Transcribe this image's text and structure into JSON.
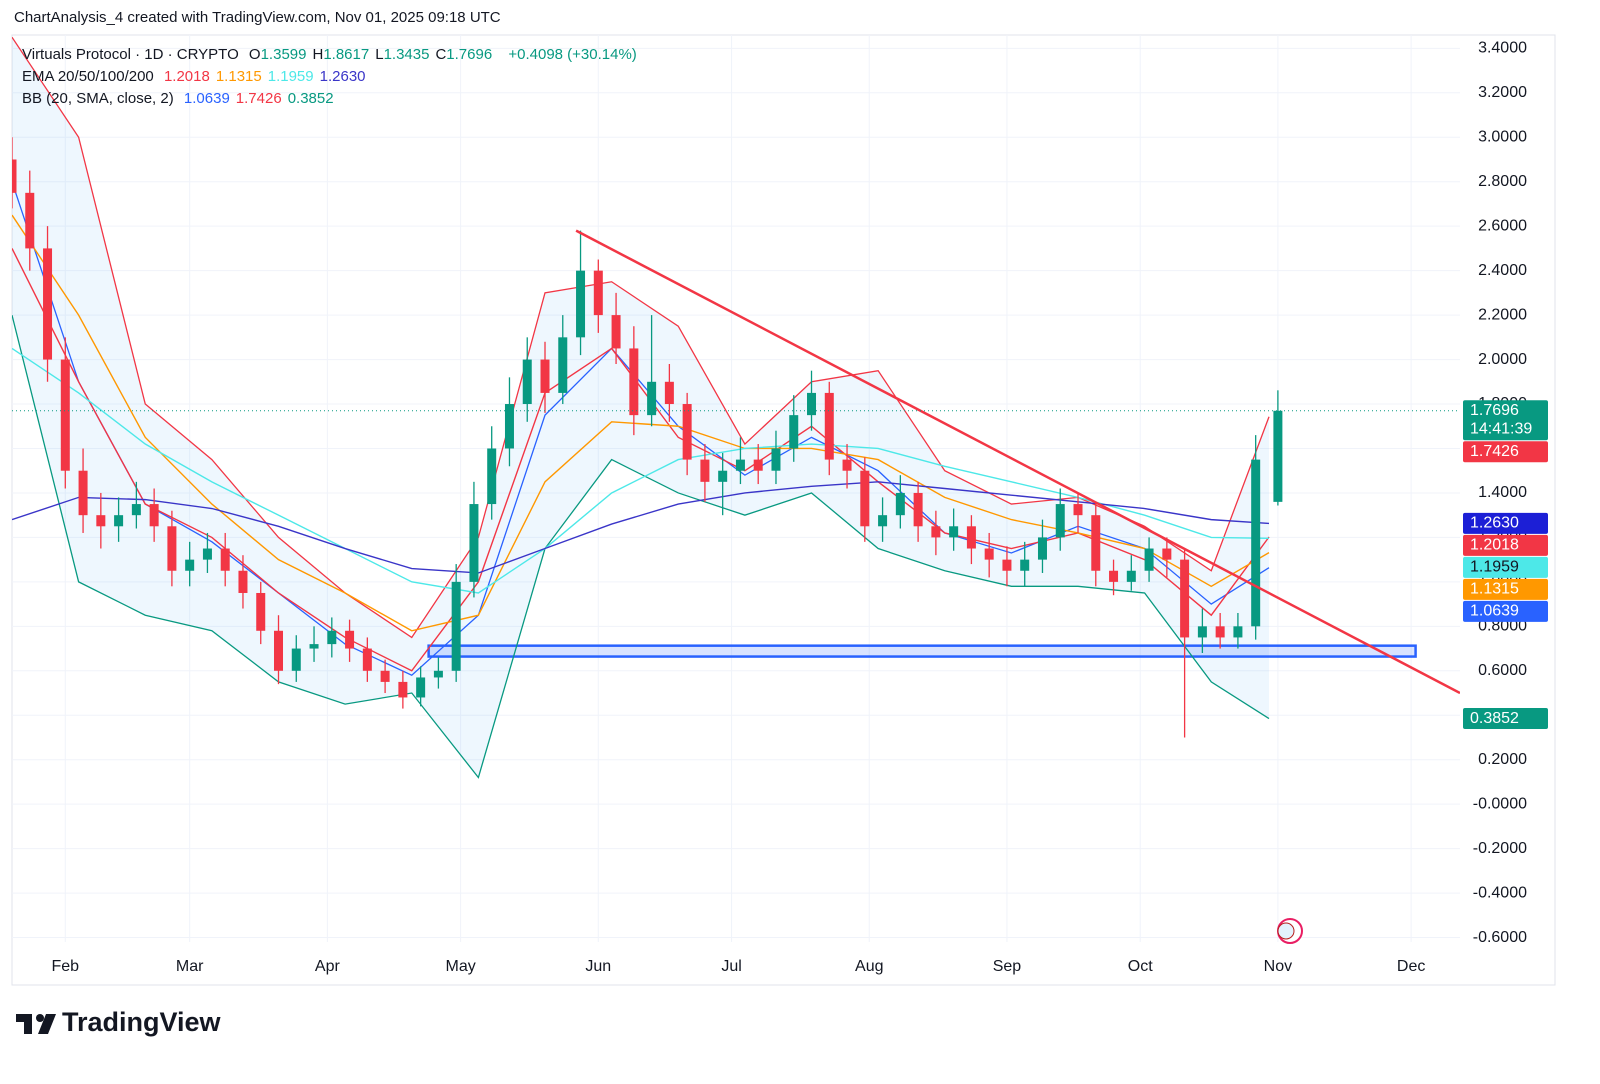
{
  "header": {
    "caption": "ChartAnalysis_4 created with TradingView.com, Nov 01, 2025 09:18 UTC"
  },
  "legend": {
    "symbol": "Virtuals Protocol · 1D · CRYPTO",
    "ohlc_keys": [
      "O",
      "H",
      "L",
      "C"
    ],
    "change": "+0.4098 (+30.14%)",
    "ema_label": "EMA 20/50/100/200",
    "bb_label": "BB (20, SMA, close, 2)"
  },
  "brand": "TradingView",
  "chart_data": {
    "type": "candlestick",
    "x": [
      19,
      23,
      27,
      31,
      35,
      39,
      43,
      47,
      51,
      55,
      59,
      63,
      67,
      71,
      75,
      79,
      83,
      87,
      91,
      95,
      99,
      103,
      107,
      111,
      115,
      119,
      123,
      127,
      131,
      135,
      139,
      143,
      147,
      151,
      155,
      159,
      163,
      167,
      171,
      175,
      179,
      183,
      187,
      191,
      195,
      199,
      203,
      207,
      211,
      215,
      219,
      223,
      227,
      231,
      235,
      239,
      243,
      247,
      251,
      255,
      259,
      263,
      267,
      271,
      275,
      279,
      283,
      287,
      291,
      295,
      299,
      304
    ],
    "open": [
      2.9,
      2.75,
      2.5,
      2.0,
      1.5,
      1.3,
      1.25,
      1.3,
      1.35,
      1.25,
      1.05,
      1.1,
      1.15,
      1.05,
      0.95,
      0.78,
      0.6,
      0.7,
      0.72,
      0.78,
      0.7,
      0.6,
      0.55,
      0.48,
      0.57,
      0.6,
      1.0,
      1.35,
      1.6,
      1.8,
      2.0,
      1.85,
      2.1,
      2.4,
      2.2,
      2.05,
      1.75,
      1.9,
      1.8,
      1.55,
      1.45,
      1.5,
      1.55,
      1.5,
      1.6,
      1.75,
      1.85,
      1.55,
      1.5,
      1.25,
      1.3,
      1.4,
      1.25,
      1.2,
      1.25,
      1.15,
      1.1,
      1.05,
      1.1,
      1.2,
      1.35,
      1.3,
      1.05,
      1.0,
      1.05,
      1.15,
      1.1,
      0.75,
      0.8,
      0.75,
      0.8,
      1.3599
    ],
    "high": [
      3.0,
      2.85,
      2.6,
      2.1,
      1.6,
      1.4,
      1.38,
      1.45,
      1.42,
      1.32,
      1.18,
      1.22,
      1.22,
      1.12,
      1.0,
      0.85,
      0.76,
      0.8,
      0.84,
      0.83,
      0.75,
      0.65,
      0.6,
      0.62,
      0.66,
      1.08,
      1.45,
      1.7,
      1.92,
      2.1,
      2.08,
      2.2,
      2.58,
      2.45,
      2.3,
      2.15,
      2.2,
      1.98,
      1.85,
      1.62,
      1.58,
      1.65,
      1.62,
      1.68,
      1.84,
      1.95,
      1.9,
      1.62,
      1.56,
      1.38,
      1.48,
      1.45,
      1.32,
      1.33,
      1.3,
      1.22,
      1.16,
      1.18,
      1.28,
      1.42,
      1.4,
      1.36,
      1.1,
      1.12,
      1.2,
      1.2,
      1.15,
      0.88,
      0.86,
      0.86,
      1.66,
      1.8617
    ],
    "low": [
      2.68,
      2.4,
      1.9,
      1.42,
      1.22,
      1.15,
      1.18,
      1.24,
      1.18,
      0.98,
      0.98,
      1.04,
      0.98,
      0.88,
      0.72,
      0.54,
      0.55,
      0.64,
      0.66,
      0.64,
      0.55,
      0.5,
      0.43,
      0.44,
      0.52,
      0.55,
      0.93,
      1.28,
      1.52,
      1.72,
      1.76,
      1.8,
      2.02,
      2.12,
      1.98,
      1.66,
      1.7,
      1.72,
      1.48,
      1.36,
      1.3,
      1.44,
      1.44,
      1.44,
      1.54,
      1.68,
      1.48,
      1.42,
      1.18,
      1.18,
      1.24,
      1.18,
      1.12,
      1.14,
      1.08,
      1.02,
      0.98,
      0.98,
      1.04,
      1.14,
      1.22,
      0.98,
      0.94,
      0.96,
      1.0,
      1.02,
      0.3,
      0.68,
      0.7,
      0.7,
      0.74,
      1.3435
    ],
    "close": [
      2.75,
      2.5,
      2.0,
      1.5,
      1.3,
      1.25,
      1.3,
      1.35,
      1.25,
      1.05,
      1.1,
      1.15,
      1.05,
      0.95,
      0.78,
      0.6,
      0.7,
      0.72,
      0.78,
      0.7,
      0.6,
      0.55,
      0.48,
      0.57,
      0.6,
      1.0,
      1.35,
      1.6,
      1.8,
      2.0,
      1.85,
      2.1,
      2.4,
      2.2,
      2.05,
      1.75,
      1.9,
      1.8,
      1.55,
      1.45,
      1.5,
      1.55,
      1.5,
      1.6,
      1.75,
      1.85,
      1.55,
      1.5,
      1.25,
      1.3,
      1.4,
      1.25,
      1.2,
      1.25,
      1.15,
      1.1,
      1.05,
      1.1,
      1.2,
      1.35,
      1.3,
      1.05,
      1.0,
      1.05,
      1.15,
      1.1,
      0.75,
      0.8,
      0.75,
      0.8,
      1.55,
      1.7696
    ],
    "up_color": "#089981",
    "down_color": "#f23645",
    "countdown": "14:41:39",
    "line_x": [
      19,
      34,
      49,
      64,
      79,
      94,
      109,
      124,
      139,
      154,
      169,
      184,
      199,
      214,
      229,
      244,
      259,
      274,
      289,
      302
    ],
    "ema": [
      {
        "color": "#f23645",
        "values": [
          2.5,
          1.9,
          1.35,
          1.2,
          0.95,
          0.75,
          0.6,
          1.0,
          1.85,
          2.05,
          1.65,
          1.5,
          1.7,
          1.45,
          1.22,
          1.15,
          1.22,
          1.1,
          0.85,
          1.2018
        ]
      },
      {
        "color": "#ff9800",
        "values": [
          2.65,
          2.2,
          1.65,
          1.35,
          1.1,
          0.95,
          0.78,
          0.85,
          1.45,
          1.72,
          1.7,
          1.6,
          1.6,
          1.55,
          1.38,
          1.28,
          1.22,
          1.15,
          0.98,
          1.1315
        ]
      },
      {
        "color": "#4de8e8",
        "values": [
          2.05,
          1.85,
          1.62,
          1.45,
          1.3,
          1.15,
          1.0,
          0.95,
          1.15,
          1.4,
          1.55,
          1.6,
          1.62,
          1.6,
          1.52,
          1.45,
          1.38,
          1.3,
          1.2,
          1.1959
        ]
      },
      {
        "color": "#3a35c8",
        "values": [
          1.28,
          1.38,
          1.37,
          1.33,
          1.25,
          1.15,
          1.06,
          1.04,
          1.15,
          1.26,
          1.35,
          1.4,
          1.43,
          1.45,
          1.42,
          1.39,
          1.36,
          1.33,
          1.28,
          1.263
        ]
      }
    ],
    "bollinger": {
      "fill": "rgba(33,150,243,0.08)",
      "basis": {
        "color": "#2962ff",
        "values": [
          2.8,
          1.9,
          1.35,
          1.18,
          0.95,
          0.72,
          0.58,
          0.85,
          1.75,
          2.05,
          1.7,
          1.48,
          1.65,
          1.5,
          1.22,
          1.13,
          1.25,
          1.15,
          0.9,
          1.0639
        ]
      },
      "upper": {
        "color": "#f23645",
        "values": [
          3.45,
          3.0,
          1.8,
          1.55,
          1.2,
          0.95,
          0.75,
          1.2,
          2.3,
          2.35,
          2.15,
          1.62,
          1.9,
          1.95,
          1.5,
          1.35,
          1.38,
          1.25,
          1.05,
          1.7426
        ]
      },
      "lower": {
        "color": "#089981",
        "values": [
          2.2,
          1.0,
          0.85,
          0.78,
          0.55,
          0.45,
          0.5,
          0.12,
          1.15,
          1.55,
          1.4,
          1.3,
          1.4,
          1.15,
          1.05,
          0.98,
          0.98,
          0.95,
          0.55,
          0.3852
        ]
      }
    },
    "trendline": {
      "color": "#f23645",
      "x": [
        146,
        345
      ],
      "y": [
        2.58,
        0.5
      ]
    },
    "zone": {
      "color": "#2962ff",
      "x": [
        112.8,
        335
      ],
      "y": [
        0.664,
        0.713
      ]
    },
    "price_labels": [
      {
        "value": 1.7426,
        "label": "1.7426",
        "color": "#f23645",
        "text_color": "#ffffff"
      },
      {
        "value": 1.263,
        "label": "1.2630",
        "color": "#1c1fd6",
        "text_color": "#ffffff"
      },
      {
        "value": 1.2018,
        "label": "1.2018",
        "color": "#f23645",
        "text_color": "#ffffff"
      },
      {
        "value": 1.1959,
        "label": "1.1959",
        "color": "#4de8e8",
        "text_color": "#131722"
      },
      {
        "value": 1.1315,
        "label": "1.1315",
        "color": "#ff9800",
        "text_color": "#ffffff"
      },
      {
        "value": 1.0639,
        "label": "1.0639",
        "color": "#2962ff",
        "text_color": "#ffffff"
      },
      {
        "value": 0.3852,
        "label": "0.3852",
        "color": "#089981",
        "text_color": "#ffffff"
      }
    ],
    "xlim": [
      19,
      345
    ],
    "xticks": [
      {
        "value": 31,
        "label": "Feb"
      },
      {
        "value": 59,
        "label": "Mar"
      },
      {
        "value": 90,
        "label": "Apr"
      },
      {
        "value": 120,
        "label": "May"
      },
      {
        "value": 151,
        "label": "Jun"
      },
      {
        "value": 181,
        "label": "Jul"
      },
      {
        "value": 212,
        "label": "Aug"
      },
      {
        "value": 243,
        "label": "Sep"
      },
      {
        "value": 273,
        "label": "Oct"
      },
      {
        "value": 304,
        "label": "Nov"
      },
      {
        "value": 334,
        "label": "Dec"
      }
    ],
    "ylim": [
      -0.62,
      3.46
    ],
    "yticks": [
      {
        "value": 3.4,
        "label": "3.4000"
      },
      {
        "value": 3.2,
        "label": "3.2000"
      },
      {
        "value": 3.0,
        "label": "3.0000"
      },
      {
        "value": 2.8,
        "label": "2.8000"
      },
      {
        "value": 2.6,
        "label": "2.6000"
      },
      {
        "value": 2.4,
        "label": "2.4000"
      },
      {
        "value": 2.2,
        "label": "2.2000"
      },
      {
        "value": 2.0,
        "label": "2.0000"
      },
      {
        "value": 1.8,
        "label": "1.8000"
      },
      {
        "value": 1.6,
        "label": "1.6000"
      },
      {
        "value": 1.4,
        "label": "1.4000"
      },
      {
        "value": 1.2,
        "label": "1.2000"
      },
      {
        "value": 1.0,
        "label": "1.0000"
      },
      {
        "value": 0.8,
        "label": "0.8000"
      },
      {
        "value": 0.6,
        "label": "0.6000"
      },
      {
        "value": 0.4,
        "label": "0.4000"
      },
      {
        "value": 0.2,
        "label": "0.2000"
      },
      {
        "value": 0,
        "label": "-0.0000"
      },
      {
        "value": -0.2,
        "label": "-0.2000"
      },
      {
        "value": -0.4,
        "label": "-0.4000"
      },
      {
        "value": -0.6,
        "label": "-0.6000"
      }
    ],
    "grid": true
  }
}
